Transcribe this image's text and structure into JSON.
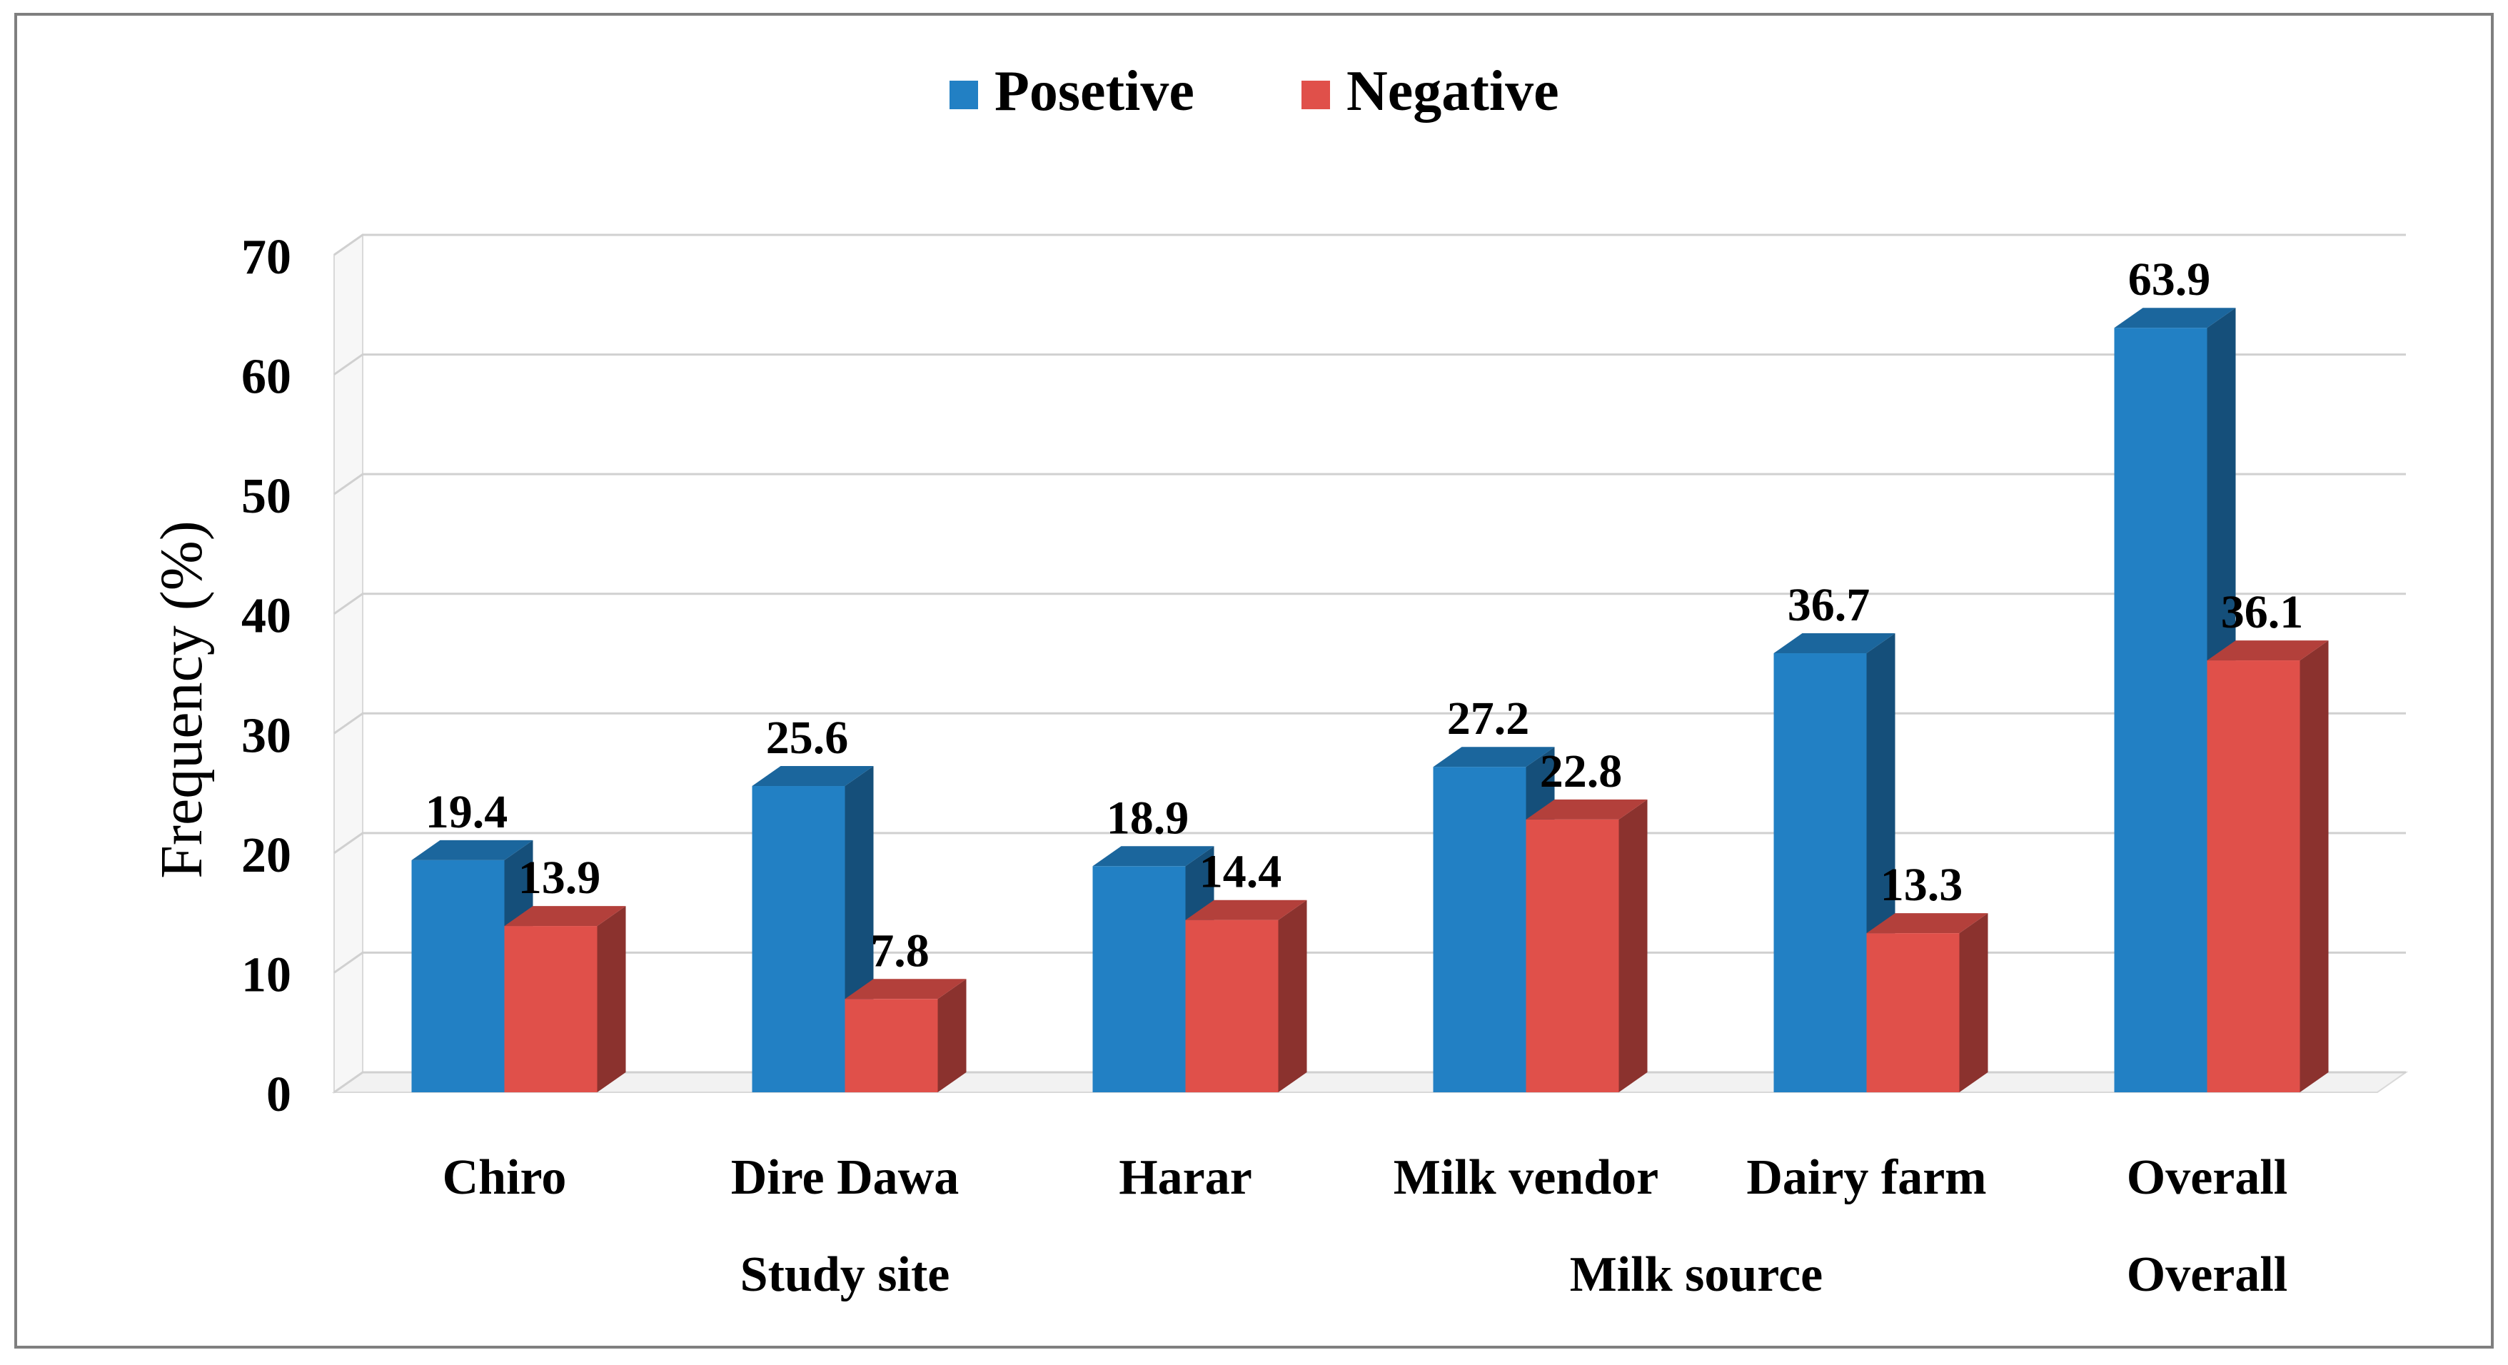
{
  "chart_data": {
    "type": "bar",
    "categories": [
      "Chiro",
      "Dire Dawa",
      "Harar",
      "Milk vendor",
      "Dairy farm",
      "Overall"
    ],
    "groups": [
      {
        "label": "Study site",
        "categories": [
          "Chiro",
          "Dire Dawa",
          "Harar"
        ]
      },
      {
        "label": "Milk source",
        "categories": [
          "Milk vendor",
          "Dairy farm"
        ]
      },
      {
        "label": "Overall",
        "categories": [
          "Overall"
        ]
      }
    ],
    "series": [
      {
        "name": "Posetive",
        "values": [
          19.4,
          25.6,
          18.9,
          27.2,
          36.7,
          63.9
        ],
        "color": "#2280C4"
      },
      {
        "name": "Negative",
        "values": [
          13.9,
          7.8,
          14.4,
          22.8,
          13.3,
          36.1
        ],
        "color": "#E0504A"
      }
    ],
    "data_labels": {
      "Posetive": [
        "19.4",
        "25.6",
        "18.9",
        "27.2",
        "36.7",
        "63.9"
      ],
      "Negative": [
        "13.9",
        "7.8",
        "14.4",
        "22.8",
        "13.3",
        "36.1"
      ]
    },
    "ylabel": "Frequency (%)",
    "xlabel": "",
    "ylim": [
      0,
      70
    ],
    "yticks": [
      "0",
      "10",
      "20",
      "30",
      "40",
      "50",
      "60",
      "70"
    ],
    "grid": true,
    "legend_position": "top-center",
    "style": "3d-clustered-column"
  }
}
